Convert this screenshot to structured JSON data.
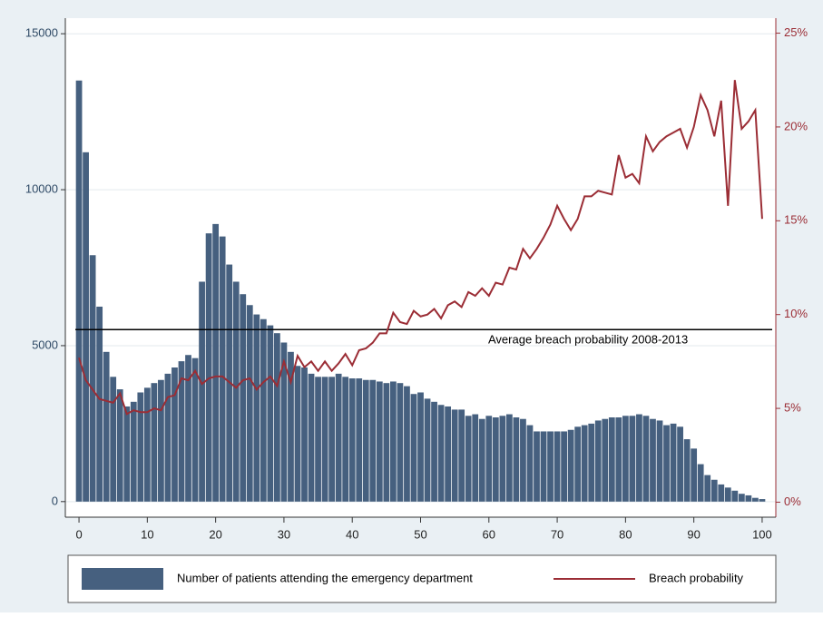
{
  "chart_data": {
    "type": "combo",
    "x": [
      0,
      1,
      2,
      3,
      4,
      5,
      6,
      7,
      8,
      9,
      10,
      11,
      12,
      13,
      14,
      15,
      16,
      17,
      18,
      19,
      20,
      21,
      22,
      23,
      24,
      25,
      26,
      27,
      28,
      29,
      30,
      31,
      32,
      33,
      34,
      35,
      36,
      37,
      38,
      39,
      40,
      41,
      42,
      43,
      44,
      45,
      46,
      47,
      48,
      49,
      50,
      51,
      52,
      53,
      54,
      55,
      56,
      57,
      58,
      59,
      60,
      61,
      62,
      63,
      64,
      65,
      66,
      67,
      68,
      69,
      70,
      71,
      72,
      73,
      74,
      75,
      76,
      77,
      78,
      79,
      80,
      81,
      82,
      83,
      84,
      85,
      86,
      87,
      88,
      89,
      90,
      91,
      92,
      93,
      94,
      95,
      96,
      97,
      98,
      99,
      100
    ],
    "series": [
      {
        "name": "Number of patients attending the emergency department",
        "type": "bar",
        "color": "#46607f",
        "values": [
          13500,
          11200,
          7900,
          6250,
          4800,
          4000,
          3600,
          3050,
          3200,
          3500,
          3650,
          3800,
          3900,
          4100,
          4300,
          4500,
          4700,
          4600,
          7050,
          8600,
          8900,
          8500,
          7600,
          7050,
          6650,
          6300,
          6000,
          5850,
          5650,
          5400,
          5100,
          4800,
          4350,
          4300,
          4100,
          4000,
          4000,
          4000,
          4100,
          4000,
          3950,
          3950,
          3900,
          3900,
          3850,
          3800,
          3850,
          3800,
          3700,
          3450,
          3500,
          3300,
          3200,
          3100,
          3050,
          2950,
          2950,
          2750,
          2800,
          2650,
          2750,
          2700,
          2750,
          2800,
          2700,
          2650,
          2450,
          2250,
          2250,
          2250,
          2250,
          2250,
          2300,
          2400,
          2450,
          2500,
          2600,
          2650,
          2700,
          2700,
          2750,
          2750,
          2800,
          2750,
          2650,
          2600,
          2450,
          2500,
          2400,
          2000,
          1700,
          1200,
          850,
          700,
          550,
          450,
          350,
          250,
          200,
          120,
          80
        ]
      },
      {
        "name": "Breach probability",
        "type": "line",
        "axis": "y2",
        "color": "#9b2d35",
        "values": [
          7.7,
          6.5,
          6.0,
          5.5,
          5.4,
          5.3,
          5.8,
          4.7,
          4.9,
          4.8,
          4.8,
          5.0,
          4.9,
          5.6,
          5.7,
          6.6,
          6.5,
          7.0,
          6.3,
          6.6,
          6.7,
          6.7,
          6.4,
          6.1,
          6.5,
          6.6,
          6.0,
          6.4,
          6.7,
          6.2,
          7.5,
          6.4,
          7.8,
          7.2,
          7.5,
          7.0,
          7.5,
          7.0,
          7.4,
          7.9,
          7.3,
          8.1,
          8.2,
          8.5,
          9.0,
          9.0,
          10.1,
          9.6,
          9.5,
          10.2,
          9.9,
          10.0,
          10.3,
          9.8,
          10.5,
          10.7,
          10.4,
          11.2,
          11.0,
          11.4,
          11.0,
          11.7,
          11.6,
          12.5,
          12.4,
          13.5,
          13.0,
          13.5,
          14.1,
          14.8,
          15.8,
          15.1,
          14.5,
          15.1,
          16.3,
          16.3,
          16.6,
          16.5,
          16.4,
          18.5,
          17.3,
          17.5,
          17.0,
          19.5,
          18.7,
          19.2,
          19.5,
          19.7,
          19.9,
          18.9,
          20.0,
          21.7,
          20.9,
          19.5,
          21.4,
          15.8,
          22.5,
          19.9,
          20.3,
          20.9,
          15.1
        ]
      }
    ],
    "xlim": [
      -2,
      102
    ],
    "xticks": [
      0,
      10,
      20,
      30,
      40,
      50,
      60,
      70,
      80,
      90,
      100
    ],
    "ylim": [
      -500,
      15500
    ],
    "yticks": [
      0,
      5000,
      10000,
      15000
    ],
    "y2lim": [
      -0.8,
      25.8
    ],
    "y2ticks": [
      {
        "value": 0,
        "label": "0%"
      },
      {
        "value": 5,
        "label": "5%"
      },
      {
        "value": 10,
        "label": "10%"
      },
      {
        "value": 15,
        "label": "15%"
      },
      {
        "value": 20,
        "label": "20%"
      },
      {
        "value": 25,
        "label": "25%"
      }
    ],
    "grid": true,
    "legend": "bottom",
    "annotations": [
      {
        "text": "Average breach probability 2008-2013",
        "value": 9.2
      }
    ]
  }
}
